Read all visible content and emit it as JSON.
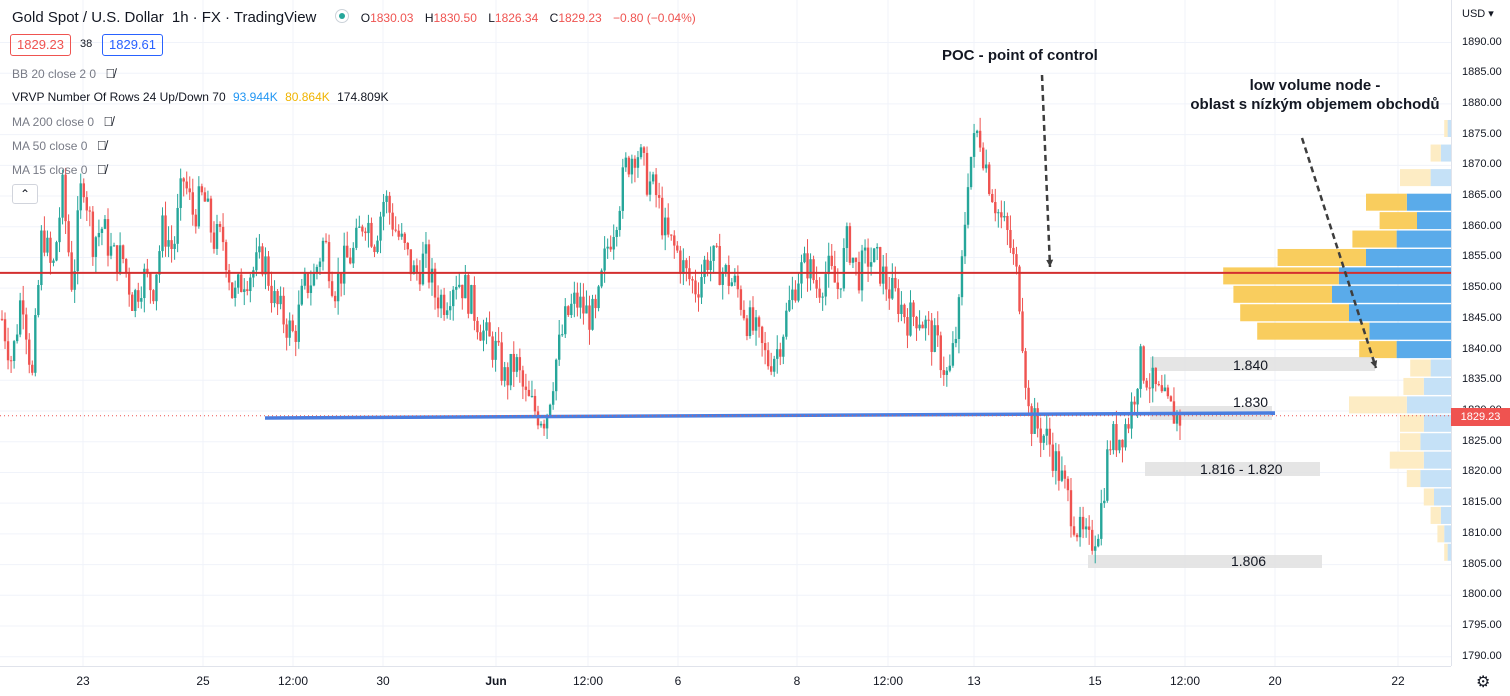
{
  "header": {
    "symbol": "Gold Spot / U.S. Dollar",
    "interval": "1h",
    "exchange": "FX",
    "source": "TradingView",
    "ohlc": {
      "o_label": "O",
      "o": "1830.03",
      "h_label": "H",
      "h": "1830.50",
      "l_label": "L",
      "l": "1826.34",
      "c_label": "C",
      "c": "1829.23",
      "change": "−0.80 (−0.04%)"
    },
    "bid": "1829.23",
    "spread": "38",
    "ask": "1829.61"
  },
  "indicators": [
    {
      "label": "BB 20 close 2 0"
    },
    {
      "label": "VRVP Number Of Rows 24 Up/Down 70",
      "v1": "93.944K",
      "v2": "80.864K",
      "v3": "174.809K"
    },
    {
      "label": "MA 200 close 0"
    },
    {
      "label": "MA 50 close 0"
    },
    {
      "label": "MA 15 close 0"
    }
  ],
  "price_scale": {
    "currency": "USD",
    "ticks": [
      "1890.00",
      "1885.00",
      "1880.00",
      "1875.00",
      "1870.00",
      "1865.00",
      "1860.00",
      "1855.00",
      "1850.00",
      "1845.00",
      "1840.00",
      "1835.00",
      "1830.00",
      "1825.00",
      "1820.00",
      "1815.00",
      "1810.00",
      "1805.00",
      "1800.00",
      "1795.00",
      "1790.00"
    ],
    "last_price": "1829.23"
  },
  "time_scale": {
    "labels": [
      "23",
      "25",
      "12:00",
      "30",
      "Jun",
      "12:00",
      "6",
      "8",
      "12:00",
      "13",
      "15",
      "12:00",
      "20",
      "22"
    ]
  },
  "annotations": {
    "poc": "POC - point of control",
    "lvn_line1": "low volume node -",
    "lvn_line2": "oblast s nízkým objemem obchodů"
  },
  "zones": [
    {
      "label": "1.840"
    },
    {
      "label": "1.830"
    },
    {
      "label": "1.816 - 1.820"
    },
    {
      "label": "1.806"
    }
  ],
  "colors": {
    "up": "#26a69a",
    "down": "#ef5350",
    "poc_line": "#d32f2f",
    "support_line": "#4a7ddf",
    "vp_up": "#5aabea",
    "vp_down": "#f9cd5e",
    "vp_up_light": "#c5e1f7",
    "vp_down_light": "#fdecc4",
    "zone": "#e0e0e0"
  },
  "chart_data": {
    "type": "candlestick",
    "price_range": [
      1788,
      1894
    ],
    "poc_price": 1852.5,
    "support_price": 1829.5,
    "last_price": 1829.23,
    "volume_profile": [
      {
        "price": 1876,
        "up": 1,
        "down": 1,
        "faded": true
      },
      {
        "price": 1872,
        "up": 3,
        "down": 3,
        "faded": true
      },
      {
        "price": 1868,
        "up": 6,
        "down": 9,
        "faded": true
      },
      {
        "price": 1864,
        "up": 13,
        "down": 12,
        "faded": false
      },
      {
        "price": 1861,
        "up": 10,
        "down": 11,
        "faded": false
      },
      {
        "price": 1858,
        "up": 16,
        "down": 13,
        "faded": false
      },
      {
        "price": 1855,
        "up": 25,
        "down": 26,
        "faded": false
      },
      {
        "price": 1852,
        "up": 33,
        "down": 34,
        "faded": false
      },
      {
        "price": 1849,
        "up": 35,
        "down": 29,
        "faded": false
      },
      {
        "price": 1846,
        "up": 30,
        "down": 32,
        "faded": false
      },
      {
        "price": 1843,
        "up": 24,
        "down": 33,
        "faded": false
      },
      {
        "price": 1840,
        "up": 16,
        "down": 11,
        "faded": false
      },
      {
        "price": 1837,
        "up": 6,
        "down": 6,
        "faded": true
      },
      {
        "price": 1834,
        "up": 8,
        "down": 6,
        "faded": true
      },
      {
        "price": 1831,
        "up": 13,
        "down": 17,
        "faded": true
      },
      {
        "price": 1828,
        "up": 8,
        "down": 7,
        "faded": true
      },
      {
        "price": 1825,
        "up": 9,
        "down": 6,
        "faded": true
      },
      {
        "price": 1822,
        "up": 8,
        "down": 10,
        "faded": true
      },
      {
        "price": 1819,
        "up": 9,
        "down": 4,
        "faded": true
      },
      {
        "price": 1816,
        "up": 5,
        "down": 3,
        "faded": true
      },
      {
        "price": 1813,
        "up": 3,
        "down": 3,
        "faded": true
      },
      {
        "price": 1810,
        "up": 2,
        "down": 2,
        "faded": true
      },
      {
        "price": 1807,
        "up": 1,
        "down": 1,
        "faded": true
      }
    ],
    "close_path": [
      [
        1845,
        1838
      ],
      [
        1850,
        1835
      ],
      [
        1860,
        1852
      ],
      [
        1866,
        1850
      ],
      [
        1869,
        1858
      ],
      [
        1860,
        1855
      ],
      [
        1855,
        1848
      ],
      [
        1852,
        1850
      ],
      [
        1860,
        1856
      ],
      [
        1868,
        1862
      ],
      [
        1865,
        1858
      ],
      [
        1858,
        1848
      ],
      [
        1852,
        1853
      ],
      [
        1855,
        1848
      ],
      [
        1845,
        1842
      ],
      [
        1850,
        1852
      ],
      [
        1858,
        1850
      ],
      [
        1854,
        1856
      ],
      [
        1862,
        1858
      ],
      [
        1865,
        1860
      ],
      [
        1856,
        1852
      ],
      [
        1855,
        1849
      ],
      [
        1848,
        1852
      ],
      [
        1850,
        1846
      ],
      [
        1842,
        1840
      ],
      [
        1835,
        1838
      ],
      [
        1832,
        1830
      ],
      [
        1829,
        1838
      ],
      [
        1845,
        1848
      ],
      [
        1846,
        1845
      ],
      [
        1856,
        1862
      ],
      [
        1870,
        1873
      ],
      [
        1868,
        1865
      ],
      [
        1858,
        1856
      ],
      [
        1852,
        1850
      ],
      [
        1855,
        1854
      ],
      [
        1852,
        1850
      ],
      [
        1845,
        1842
      ],
      [
        1838,
        1840
      ],
      [
        1846,
        1852
      ],
      [
        1854,
        1850
      ],
      [
        1853,
        1850
      ],
      [
        1858,
        1852
      ],
      [
        1855,
        1854
      ],
      [
        1850,
        1848
      ],
      [
        1845,
        1846
      ],
      [
        1843,
        1840
      ],
      [
        1835,
        1845
      ],
      [
        1870,
        1876
      ],
      [
        1868,
        1862
      ],
      [
        1858,
        1850
      ],
      [
        1829,
        1827
      ],
      [
        1825,
        1820
      ],
      [
        1815,
        1810
      ],
      [
        1808,
        1812
      ],
      [
        1825,
        1826
      ],
      [
        1829,
        1838
      ],
      [
        1835,
        1832
      ],
      [
        1830,
        1829
      ]
    ]
  }
}
